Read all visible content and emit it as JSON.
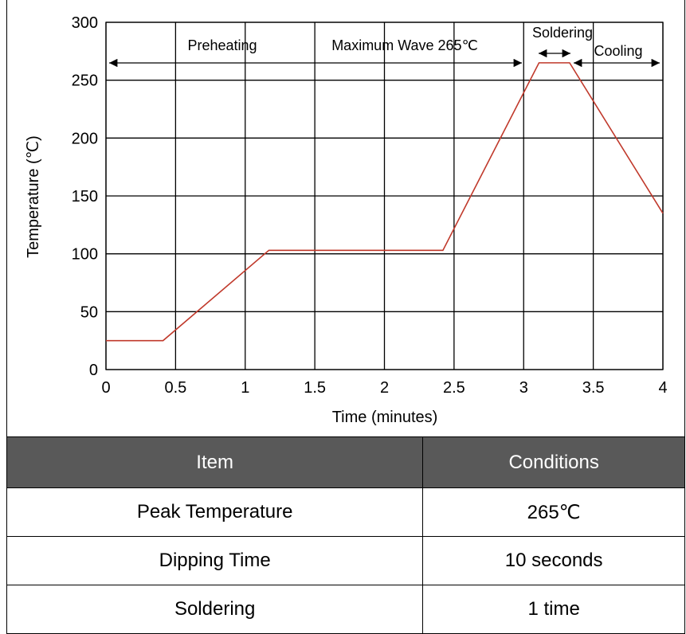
{
  "chart_data": {
    "type": "line",
    "xlabel": "Time (minutes)",
    "ylabel": "Temperature (℃)",
    "xlim": [
      0,
      4
    ],
    "ylim": [
      0,
      300
    ],
    "x_ticks": [
      "0",
      "0.5",
      "1",
      "1.5",
      "2",
      "2.5",
      "3",
      "3.5",
      "4"
    ],
    "y_ticks": [
      "0",
      "50",
      "100",
      "150",
      "200",
      "250",
      "300"
    ],
    "grid": true,
    "series": [
      {
        "color": "#c0392b",
        "x": [
          0,
          0.41,
          1.17,
          2.42,
          3.11,
          3.33,
          4.0
        ],
        "y": [
          25,
          25,
          103,
          103,
          265,
          265,
          135
        ]
      }
    ],
    "annotations": {
      "preheating": "Preheating",
      "maximum_wave": "Maximum Wave 265℃",
      "soldering": "Soldering",
      "cooling": "Cooling"
    }
  },
  "table": {
    "headers": [
      "Item",
      "Conditions"
    ],
    "rows": [
      [
        "Peak Temperature",
        "265℃"
      ],
      [
        "Dipping Time",
        "10 seconds"
      ],
      [
        "Soldering",
        "1 time"
      ]
    ]
  }
}
